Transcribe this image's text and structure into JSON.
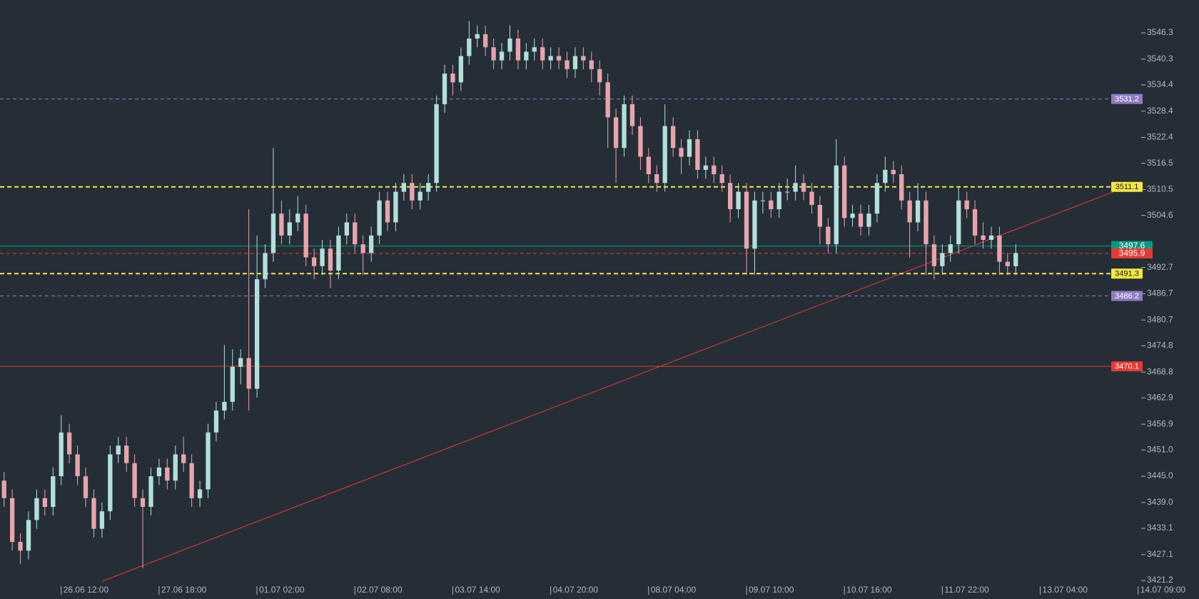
{
  "chart_data": {
    "type": "candlestick",
    "up_color": "#b2dfdb",
    "down_color": "#e8a4ae",
    "background": "#252e36",
    "xlim": [
      -0.5,
      139.2
    ],
    "ylim": [
      3421.2,
      3553.8
    ],
    "xticks": [
      {
        "value": 7,
        "label": "26.06 12:00"
      },
      {
        "value": 19,
        "label": "27.06 18:00"
      },
      {
        "value": 31,
        "label": "01.07 02:00"
      },
      {
        "value": 43,
        "label": "02.07 08:00"
      },
      {
        "value": 55,
        "label": "03.07 14:00"
      },
      {
        "value": 67,
        "label": "04.07 20:00"
      },
      {
        "value": 79,
        "label": "08.07 04:00"
      },
      {
        "value": 91,
        "label": "09.07 10:00"
      },
      {
        "value": 103,
        "label": "10.07 16:00"
      },
      {
        "value": 115,
        "label": "11.07 22:00"
      },
      {
        "value": 127,
        "label": "13.07 04:00"
      },
      {
        "value": 139,
        "label": "14.07 09:00"
      }
    ],
    "yticks": [
      3546.3,
      3540.3,
      3534.4,
      3528.4,
      3522.4,
      3516.5,
      3510.5,
      3504.6,
      3492.7,
      3486.7,
      3480.7,
      3474.8,
      3468.8,
      3462.9,
      3456.9,
      {
        "value": 3451,
        "label": "3451.0"
      },
      {
        "value": 3445,
        "label": "3445.0"
      },
      {
        "value": 3439,
        "label": "3439.0"
      },
      3433.1,
      3427.1,
      3421.2
    ],
    "open": [
      3444,
      3440,
      3430,
      3428,
      3435,
      3440,
      3438,
      3445,
      3455,
      3450,
      3445,
      3440,
      3433,
      3437,
      3450,
      3452,
      3448,
      3440,
      3438,
      3445,
      3447,
      3444,
      3450,
      3448,
      3440,
      3442,
      3455,
      3460,
      3462,
      3470,
      3472,
      3465,
      3490,
      3496,
      3505,
      3500,
      3503,
      3505,
      3495,
      3493,
      3497,
      3492,
      3500,
      3503,
      3498,
      3496,
      3500,
      3508,
      3503,
      3510,
      3512,
      3508,
      3510,
      3512,
      3530,
      3537,
      3535,
      3541,
      3545,
      3546,
      3543,
      3540,
      3542,
      3545,
      3540,
      3542,
      3543,
      3540,
      3541,
      3540,
      3538,
      3541,
      3540,
      3538,
      3535,
      3527,
      3520,
      3530,
      3525,
      3518,
      3514,
      3512,
      3525,
      3520,
      3518,
      3522,
      3515,
      3516,
      3514,
      3512,
      3506,
      3510,
      3497,
      3508,
      3508,
      3506,
      3510,
      3510,
      3512,
      3510,
      3507,
      3502,
      3498,
      3516,
      3504,
      3505,
      3502,
      3505,
      3512,
      3515,
      3514,
      3508,
      3503,
      3508,
      3498,
      3493,
      3496,
      3498,
      3508,
      3506,
      3500,
      3499,
      3500,
      3494,
      3493
    ],
    "high": [
      3446,
      3442,
      3432,
      3437,
      3442,
      3442,
      3447,
      3459,
      3457,
      3452,
      3447,
      3442,
      3439,
      3452,
      3454,
      3454,
      3450,
      3442,
      3447,
      3449,
      3449,
      3452,
      3454,
      3450,
      3444,
      3457,
      3462,
      3475,
      3474,
      3474,
      3506,
      3500,
      3498,
      3520,
      3508,
      3506,
      3509,
      3507,
      3497,
      3499,
      3499,
      3502,
      3505,
      3505,
      3500,
      3502,
      3510,
      3510,
      3512,
      3514,
      3514,
      3512,
      3514,
      3532,
      3539,
      3539,
      3543,
      3549,
      3548,
      3548,
      3545,
      3544,
      3548,
      3547,
      3544,
      3545,
      3545,
      3543,
      3543,
      3542,
      3543,
      3543,
      3542,
      3540,
      3537,
      3529,
      3532,
      3532,
      3527,
      3520,
      3516,
      3530,
      3527,
      3522,
      3524,
      3524,
      3518,
      3518,
      3516,
      3514,
      3512,
      3512,
      3510,
      3510,
      3510,
      3512,
      3513,
      3516,
      3514,
      3512,
      3509,
      3504,
      3522,
      3518,
      3507,
      3507,
      3507,
      3514,
      3518,
      3517,
      3516,
      3510,
      3512,
      3510,
      3500,
      3498,
      3500,
      3511,
      3510,
      3508,
      3503,
      3502,
      3502,
      3496,
      3498
    ],
    "low": [
      3438,
      3428,
      3425,
      3426,
      3433,
      3436,
      3436,
      3443,
      3448,
      3443,
      3438,
      3431,
      3431,
      3435,
      3448,
      3446,
      3438,
      3424,
      3436,
      3443,
      3442,
      3442,
      3446,
      3438,
      3438,
      3440,
      3453,
      3458,
      3460,
      3466,
      3460,
      3463,
      3488,
      3494,
      3498,
      3498,
      3501,
      3493,
      3490,
      3491,
      3488,
      3490,
      3498,
      3496,
      3491,
      3494,
      3498,
      3501,
      3501,
      3508,
      3506,
      3506,
      3508,
      3510,
      3528,
      3532,
      3533,
      3539,
      3543,
      3541,
      3538,
      3538,
      3540,
      3538,
      3538,
      3540,
      3538,
      3538,
      3538,
      3536,
      3536,
      3538,
      3535,
      3532,
      3520,
      3512,
      3518,
      3523,
      3515,
      3512,
      3510,
      3510,
      3518,
      3514,
      3516,
      3513,
      3513,
      3512,
      3510,
      3503,
      3504,
      3491,
      3491,
      3505,
      3504,
      3504,
      3508,
      3508,
      3508,
      3505,
      3498,
      3496,
      3496,
      3502,
      3502,
      3500,
      3500,
      3503,
      3510,
      3512,
      3506,
      3495,
      3501,
      3491,
      3490,
      3491,
      3494,
      3496,
      3504,
      3498,
      3497,
      3497,
      3491,
      3491,
      3491
    ],
    "close": [
      3440,
      3430,
      3428,
      3435,
      3440,
      3438,
      3445,
      3455,
      3450,
      3445,
      3440,
      3433,
      3437,
      3450,
      3452,
      3448,
      3440,
      3438,
      3445,
      3447,
      3444,
      3450,
      3448,
      3440,
      3442,
      3455,
      3460,
      3462,
      3470,
      3472,
      3465,
      3490,
      3496,
      3505,
      3500,
      3503,
      3505,
      3495,
      3493,
      3497,
      3492,
      3500,
      3503,
      3498,
      3496,
      3500,
      3508,
      3503,
      3510,
      3512,
      3508,
      3510,
      3512,
      3530,
      3537,
      3535,
      3541,
      3545,
      3546,
      3543,
      3540,
      3542,
      3545,
      3540,
      3542,
      3543,
      3540,
      3541,
      3540,
      3538,
      3541,
      3540,
      3538,
      3535,
      3527,
      3520,
      3530,
      3525,
      3518,
      3514,
      3512,
      3525,
      3520,
      3518,
      3522,
      3515,
      3516,
      3514,
      3512,
      3506,
      3510,
      3497,
      3508,
      3508,
      3506,
      3510,
      3510,
      3512,
      3510,
      3507,
      3502,
      3498,
      3516,
      3504,
      3505,
      3502,
      3505,
      3512,
      3515,
      3514,
      3508,
      3503,
      3508,
      3498,
      3493,
      3496,
      3498,
      3508,
      3506,
      3500,
      3499,
      3500,
      3494,
      3493,
      3496
    ],
    "price_lines": [
      {
        "value": 3531.2,
        "color": "#8e7cc3",
        "style": "dashed"
      },
      {
        "value": 3511.1,
        "color": "#f5e642",
        "style": "dashed"
      },
      {
        "value": 3497.6,
        "color": "#089981",
        "style": "solid"
      },
      {
        "value": 3495.9,
        "color": "#e53935",
        "style": "dashed"
      },
      {
        "value": 3491.3,
        "color": "#f5e642",
        "style": "dashed"
      },
      {
        "value": 3486.2,
        "color": "#8e7cc3",
        "style": "dashed"
      },
      {
        "value": 3470.1,
        "color": "#e53935",
        "style": "solid"
      }
    ],
    "trendline": {
      "x": [
        12,
        136
      ],
      "y": [
        3421,
        3510
      ],
      "color": "#e53935"
    }
  }
}
